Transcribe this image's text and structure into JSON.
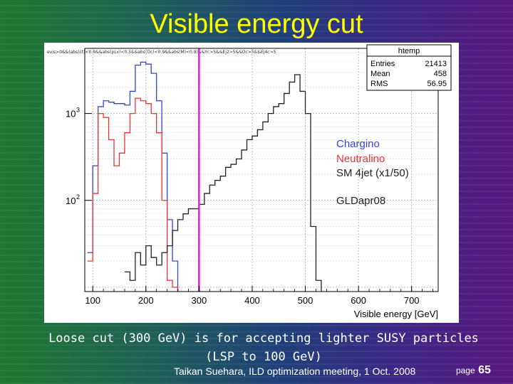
{
  "slide": {
    "title": "Visible energy cut",
    "caption_line1": "Loose cut (300 GeV) is for accepting lighter SUSY particles",
    "caption_line2": "(LSP to 100 GeV)",
    "footer": "Taikan Suehara, ILD optimization meeting, 1 Oct. 2008",
    "page_label": "page",
    "page_number": "65"
  },
  "chart_data": {
    "type": "line",
    "cut_string": "evis>0&&(abs(ct)<0.9&&abs(pLx)<0.5&&abs(Dc)<0.9&&abs(M)<0.9)&&Yc>5&&Ej2>5&&Dc>5&&Ej4c>5",
    "stats": {
      "name": "htemp",
      "rows": [
        {
          "label": "Entries",
          "value": "21413"
        },
        {
          "label": "Mean",
          "value": "458"
        },
        {
          "label": "RMS",
          "value": "56.95"
        }
      ]
    },
    "xlabel": "Visible energy [GeV]",
    "ylabel": "",
    "x_ticks": [
      "100",
      "200",
      "300",
      "400",
      "500",
      "600",
      "700"
    ],
    "y_ticks": [
      {
        "base": "10",
        "exp": "3",
        "value": 1000
      },
      {
        "base": "10",
        "exp": "2",
        "value": 100
      }
    ],
    "xlim": [
      85,
      750
    ],
    "ylim_log10": [
      0.95,
      3.75
    ],
    "log_y": true,
    "grid": true,
    "legend_position": "right",
    "legend": [
      {
        "label": "Chargino",
        "color": "#3344dd"
      },
      {
        "label": "Neutralino",
        "color": "#ee3333"
      },
      {
        "label": "SM 4jet (x1/50)",
        "color": "#222222"
      },
      {
        "label": "GLDapr08",
        "color": "#222222"
      }
    ],
    "cut_line": {
      "x": 300,
      "color": "#e020d0"
    },
    "bin_width": 10,
    "series": [
      {
        "name": "Chargino",
        "color": "#3344dd",
        "x": [
          90,
          100,
          110,
          120,
          130,
          140,
          150,
          160,
          170,
          180,
          190,
          200,
          210,
          220,
          230,
          240,
          250
        ],
        "y": [
          25,
          250,
          1200,
          1400,
          1350,
          1300,
          1300,
          1250,
          1800,
          3600,
          3900,
          3700,
          2900,
          1400,
          350,
          60,
          20
        ]
      },
      {
        "name": "Neutralino",
        "color": "#ee3333",
        "x": [
          90,
          100,
          110,
          120,
          130,
          140,
          150,
          160,
          170,
          180,
          190,
          200,
          210,
          220,
          230,
          240,
          250
        ],
        "y": [
          20,
          120,
          1000,
          900,
          500,
          250,
          350,
          600,
          1000,
          1500,
          1400,
          1300,
          1000,
          600,
          100,
          12,
          10
        ]
      },
      {
        "name": "SM 4jet (x1/50)",
        "color": "#222222",
        "x": [
          160,
          170,
          180,
          190,
          200,
          210,
          220,
          230,
          240,
          250,
          260,
          270,
          280,
          290,
          300,
          310,
          320,
          330,
          340,
          350,
          360,
          370,
          380,
          390,
          400,
          410,
          420,
          430,
          440,
          450,
          460,
          470,
          480,
          490,
          500,
          510,
          520
        ],
        "y": [
          15,
          12,
          25,
          18,
          30,
          22,
          18,
          25,
          30,
          45,
          60,
          70,
          80,
          80,
          90,
          120,
          150,
          170,
          190,
          240,
          260,
          300,
          380,
          500,
          550,
          650,
          800,
          1000,
          1200,
          1300,
          1700,
          2300,
          2800,
          1800,
          1000,
          50,
          12
        ]
      }
    ]
  }
}
